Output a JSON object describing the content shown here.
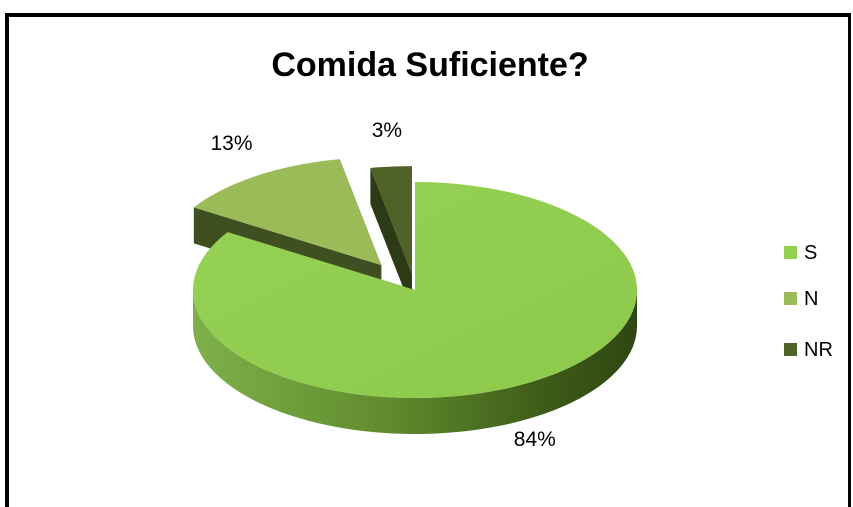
{
  "chart_data": {
    "type": "pie",
    "title": "Comida Suficiente?",
    "categories": [
      "S",
      "N",
      "NR"
    ],
    "values": [
      84,
      13,
      3
    ],
    "data_labels": [
      "84%",
      "13%",
      "3%"
    ],
    "colors": [
      "#92d050",
      "#9bbb59",
      "#4f6228"
    ],
    "legend_position": "right",
    "three_d": true,
    "exploded": true
  }
}
